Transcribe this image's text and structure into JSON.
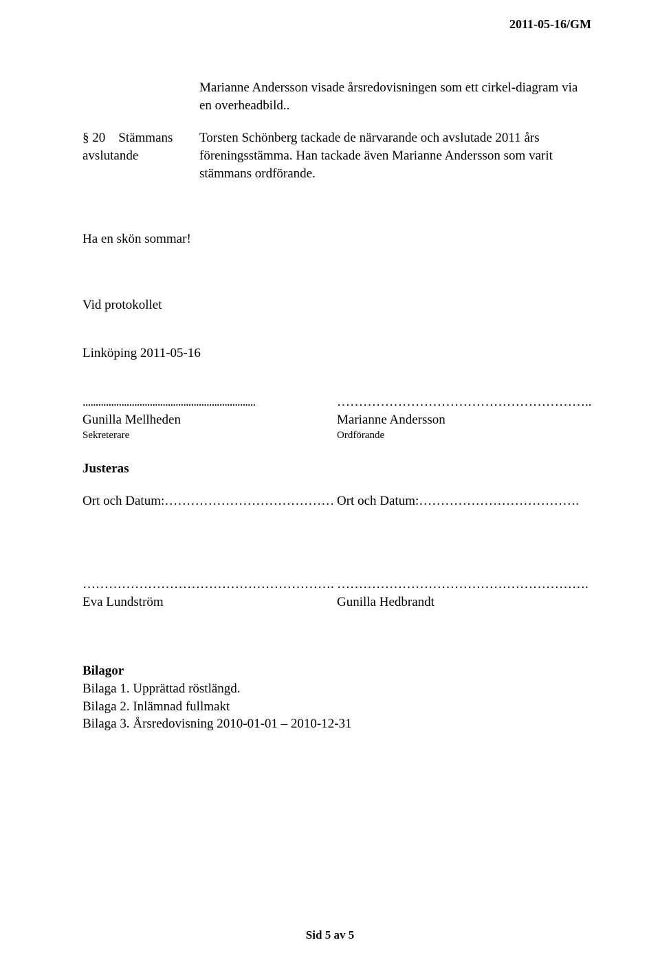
{
  "header": {
    "date_code": "2011-05-16/GM"
  },
  "intro": {
    "para": "Marianne Andersson visade årsredovisningen som ett cirkel-diagram via en overheadbild.."
  },
  "section20": {
    "number": "§ 20",
    "title_line1": "Stämmans",
    "title_line2": "avslutande",
    "body": "Torsten Schönberg  tackade de närvarande och avslutade 2011 års föreningsstämma. Han tackade även Marianne Andersson som varit stämmans ordförande."
  },
  "greeting": "Ha en skön sommar!",
  "protokoll_label": "Vid protokollet",
  "place_date": "Linköping 2011-05-16",
  "signatures": {
    "left": {
      "dots": "...................................................................",
      "name": "Gunilla Mellheden",
      "role": "Sekreterare"
    },
    "right": {
      "dots": "…………………………………………………..",
      "name": "Marianne Andersson",
      "role": "Ordförande"
    }
  },
  "justeras_label": "Justeras",
  "ort_left": "Ort och Datum:…………………………………",
  "ort_right": "Ort och Datum:……………………………….",
  "adjust_left": {
    "dots": "………………………………………………….",
    "name": "Eva Lundström"
  },
  "adjust_right": {
    "dots": "………………………………………………….",
    "name": "Gunilla Hedbrandt"
  },
  "bilagor": {
    "heading": "Bilagor",
    "items": [
      "Bilaga 1. Upprättad röstlängd.",
      "Bilaga 2. Inlämnad fullmakt",
      "Bilaga 3. Årsredovisning 2010-01-01 – 2010-12-31"
    ]
  },
  "footer": {
    "prefix": "Sid ",
    "current": "5",
    "mid": " av ",
    "total": "5"
  }
}
